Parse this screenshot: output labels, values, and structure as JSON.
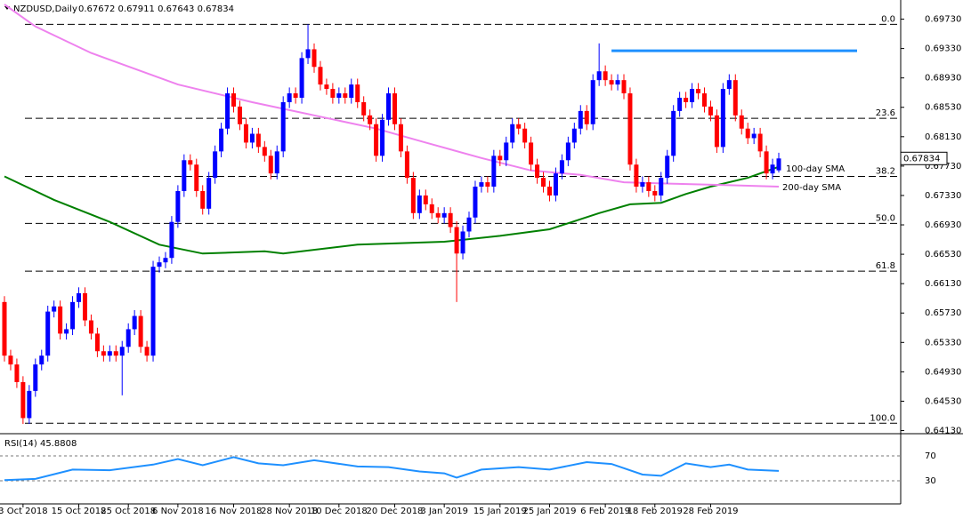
{
  "chart_data": {
    "type": "candlestick",
    "title": "NZDUSD,Daily",
    "ohlc_text": "0.67672 0.67911 0.67643 0.67834",
    "last_price": 0.67834,
    "bull_color": "#0000ff",
    "bear_color": "#ff0000",
    "ylim": [
      0.641,
      0.6993
    ],
    "yticks": [
      {
        "value": 0.6973,
        "label": "0.69730"
      },
      {
        "value": 0.6933,
        "label": "0.69330"
      },
      {
        "value": 0.6893,
        "label": "0.68930"
      },
      {
        "value": 0.6853,
        "label": "0.68530"
      },
      {
        "value": 0.6813,
        "label": "0.68130"
      },
      {
        "value": 0.6773,
        "label": "0.67730"
      },
      {
        "value": 0.6733,
        "label": "0.67330"
      },
      {
        "value": 0.6693,
        "label": "0.66930"
      },
      {
        "value": 0.6653,
        "label": "0.66530"
      },
      {
        "value": 0.6613,
        "label": "0.66130"
      },
      {
        "value": 0.6573,
        "label": "0.65730"
      },
      {
        "value": 0.6533,
        "label": "0.65330"
      },
      {
        "value": 0.6493,
        "label": "0.64930"
      },
      {
        "value": 0.6453,
        "label": "0.64530"
      },
      {
        "value": 0.6413,
        "label": "0.64130"
      }
    ],
    "categories": [
      null,
      null,
      null,
      "3 Oct 2018",
      null,
      null,
      null,
      null,
      null,
      null,
      null,
      null,
      "15 Oct 2018",
      null,
      null,
      null,
      null,
      null,
      null,
      null,
      "25 Oct 2018",
      null,
      null,
      null,
      null,
      null,
      null,
      null,
      "6 Nov 2018",
      null,
      null,
      null,
      null,
      null,
      null,
      null,
      null,
      "16 Nov 2018",
      null,
      null,
      null,
      null,
      null,
      null,
      null,
      null,
      "28 Nov 2018",
      null,
      null,
      null,
      null,
      null,
      null,
      null,
      "10 Dec 2018",
      null,
      null,
      null,
      null,
      null,
      null,
      null,
      null,
      "20 Dec 2018",
      null,
      null,
      null,
      null,
      null,
      null,
      null,
      "3 Jan 2019",
      null,
      null,
      null,
      null,
      null,
      null,
      null,
      null,
      "15 Jan 2019",
      null,
      null,
      null,
      null,
      null,
      null,
      null,
      "25 Jan 2019",
      null,
      null,
      null,
      null,
      null,
      null,
      null,
      null,
      "6 Feb 2019",
      null,
      null,
      null,
      null,
      null,
      null,
      null,
      "18 Feb 2019",
      null,
      null,
      null,
      null,
      null,
      null,
      null,
      null,
      "28 Feb 2019",
      null,
      null,
      null,
      null,
      null,
      null,
      null,
      null,
      null,
      null,
      null
    ],
    "candles": [
      [
        0.6588,
        0.6596,
        0.6507,
        0.6515
      ],
      [
        0.6515,
        0.6523,
        0.6495,
        0.6503
      ],
      [
        0.6503,
        0.6511,
        0.6471,
        0.6479
      ],
      [
        0.6479,
        0.6487,
        0.6422,
        0.643
      ],
      [
        0.643,
        0.6475,
        0.6422,
        0.6467
      ],
      [
        0.6467,
        0.6511,
        0.6459,
        0.6503
      ],
      [
        0.6503,
        0.6523,
        0.6495,
        0.6515
      ],
      [
        0.6515,
        0.6583,
        0.6507,
        0.6575
      ],
      [
        0.6575,
        0.659,
        0.6567,
        0.6582
      ],
      [
        0.6582,
        0.659,
        0.6537,
        0.6545
      ],
      [
        0.6545,
        0.6559,
        0.6537,
        0.6551
      ],
      [
        0.6551,
        0.6596,
        0.6543,
        0.6588
      ],
      [
        0.6588,
        0.6608,
        0.658,
        0.66
      ],
      [
        0.66,
        0.6608,
        0.6555,
        0.6563
      ],
      [
        0.6563,
        0.6571,
        0.6537,
        0.6545
      ],
      [
        0.6545,
        0.6553,
        0.6513,
        0.6521
      ],
      [
        0.6521,
        0.6529,
        0.6507,
        0.6515
      ],
      [
        0.6515,
        0.6529,
        0.6507,
        0.6521
      ],
      [
        0.6521,
        0.6529,
        0.6507,
        0.6515
      ],
      [
        0.6515,
        0.6535,
        0.6461,
        0.6527
      ],
      [
        0.6527,
        0.6559,
        0.6519,
        0.6551
      ],
      [
        0.6551,
        0.6577,
        0.6543,
        0.6569
      ],
      [
        0.6569,
        0.6577,
        0.6519,
        0.6527
      ],
      [
        0.6527,
        0.6535,
        0.6507,
        0.6515
      ],
      [
        0.6515,
        0.6644,
        0.6507,
        0.6636
      ],
      [
        0.6636,
        0.665,
        0.6628,
        0.6642
      ],
      [
        0.6642,
        0.6656,
        0.6634,
        0.6648
      ],
      [
        0.6648,
        0.6705,
        0.664,
        0.6697
      ],
      [
        0.6697,
        0.6747,
        0.6689,
        0.6739
      ],
      [
        0.6739,
        0.6789,
        0.6731,
        0.6781
      ],
      [
        0.6781,
        0.6789,
        0.6767,
        0.6775
      ],
      [
        0.6775,
        0.6783,
        0.6731,
        0.6739
      ],
      [
        0.6739,
        0.6747,
        0.6707,
        0.6715
      ],
      [
        0.6715,
        0.6765,
        0.6707,
        0.6757
      ],
      [
        0.6757,
        0.6801,
        0.6749,
        0.6793
      ],
      [
        0.6793,
        0.6832,
        0.6785,
        0.6824
      ],
      [
        0.6824,
        0.688,
        0.6816,
        0.6872
      ],
      [
        0.6872,
        0.688,
        0.6846,
        0.6854
      ],
      [
        0.6854,
        0.6862,
        0.6822,
        0.683
      ],
      [
        0.683,
        0.6838,
        0.6797,
        0.6805
      ],
      [
        0.6805,
        0.6825,
        0.6797,
        0.6817
      ],
      [
        0.6817,
        0.6825,
        0.6791,
        0.6799
      ],
      [
        0.6799,
        0.6807,
        0.6779,
        0.6787
      ],
      [
        0.6787,
        0.6795,
        0.6755,
        0.6763
      ],
      [
        0.6763,
        0.6801,
        0.6755,
        0.6793
      ],
      [
        0.6793,
        0.6868,
        0.6785,
        0.686
      ],
      [
        0.686,
        0.688,
        0.6852,
        0.6872
      ],
      [
        0.6872,
        0.688,
        0.6858,
        0.6866
      ],
      [
        0.6866,
        0.6928,
        0.6858,
        0.692
      ],
      [
        0.692,
        0.6966,
        0.6912,
        0.6932
      ],
      [
        0.6932,
        0.694,
        0.69,
        0.6908
      ],
      [
        0.6908,
        0.6916,
        0.6876,
        0.6884
      ],
      [
        0.6884,
        0.6892,
        0.687,
        0.6878
      ],
      [
        0.6878,
        0.6886,
        0.6858,
        0.6866
      ],
      [
        0.6866,
        0.688,
        0.6858,
        0.6872
      ],
      [
        0.6872,
        0.688,
        0.6858,
        0.6866
      ],
      [
        0.6866,
        0.6892,
        0.6858,
        0.6884
      ],
      [
        0.6884,
        0.6892,
        0.6852,
        0.686
      ],
      [
        0.686,
        0.6868,
        0.6834,
        0.6842
      ],
      [
        0.6842,
        0.685,
        0.6822,
        0.683
      ],
      [
        0.683,
        0.6838,
        0.6779,
        0.6787
      ],
      [
        0.6787,
        0.6844,
        0.6779,
        0.6836
      ],
      [
        0.6836,
        0.688,
        0.6828,
        0.6872
      ],
      [
        0.6872,
        0.688,
        0.6822,
        0.683
      ],
      [
        0.683,
        0.6838,
        0.6785,
        0.6793
      ],
      [
        0.6793,
        0.6801,
        0.6749,
        0.6757
      ],
      [
        0.6757,
        0.6765,
        0.6701,
        0.6709
      ],
      [
        0.6709,
        0.6741,
        0.6701,
        0.6733
      ],
      [
        0.6733,
        0.6741,
        0.6713,
        0.6721
      ],
      [
        0.6721,
        0.6729,
        0.6701,
        0.6709
      ],
      [
        0.6709,
        0.6717,
        0.6695,
        0.6703
      ],
      [
        0.6703,
        0.6717,
        0.6695,
        0.6709
      ],
      [
        0.6709,
        0.6717,
        0.6682,
        0.669
      ],
      [
        0.669,
        0.6698,
        0.6588,
        0.6654
      ],
      [
        0.6654,
        0.6692,
        0.6646,
        0.6684
      ],
      [
        0.6684,
        0.6711,
        0.6676,
        0.6703
      ],
      [
        0.6703,
        0.6753,
        0.6695,
        0.6745
      ],
      [
        0.6745,
        0.6759,
        0.6737,
        0.6751
      ],
      [
        0.6751,
        0.6759,
        0.6737,
        0.6745
      ],
      [
        0.6745,
        0.6795,
        0.6737,
        0.6787
      ],
      [
        0.6787,
        0.6795,
        0.6773,
        0.6781
      ],
      [
        0.6781,
        0.6813,
        0.6773,
        0.6805
      ],
      [
        0.6805,
        0.6838,
        0.6797,
        0.683
      ],
      [
        0.683,
        0.6838,
        0.6816,
        0.6824
      ],
      [
        0.6824,
        0.6832,
        0.6797,
        0.6805
      ],
      [
        0.6805,
        0.6813,
        0.6767,
        0.6775
      ],
      [
        0.6775,
        0.6783,
        0.6749,
        0.6757
      ],
      [
        0.6757,
        0.6765,
        0.6737,
        0.6745
      ],
      [
        0.6745,
        0.6753,
        0.6725,
        0.6733
      ],
      [
        0.6733,
        0.6771,
        0.6725,
        0.6763
      ],
      [
        0.6763,
        0.6789,
        0.6755,
        0.6781
      ],
      [
        0.6781,
        0.6813,
        0.6773,
        0.6805
      ],
      [
        0.6805,
        0.6832,
        0.6797,
        0.6824
      ],
      [
        0.6824,
        0.6856,
        0.6816,
        0.6848
      ],
      [
        0.6848,
        0.6856,
        0.6822,
        0.683
      ],
      [
        0.683,
        0.6898,
        0.6822,
        0.689
      ],
      [
        0.689,
        0.694,
        0.6882,
        0.6902
      ],
      [
        0.6902,
        0.691,
        0.6882,
        0.689
      ],
      [
        0.689,
        0.6898,
        0.6876,
        0.6884
      ],
      [
        0.6884,
        0.6898,
        0.6876,
        0.689
      ],
      [
        0.689,
        0.6898,
        0.6864,
        0.6872
      ],
      [
        0.6872,
        0.688,
        0.6767,
        0.6775
      ],
      [
        0.6775,
        0.6783,
        0.6737,
        0.6745
      ],
      [
        0.6745,
        0.6759,
        0.6737,
        0.6751
      ],
      [
        0.6751,
        0.6759,
        0.6731,
        0.6739
      ],
      [
        0.6739,
        0.6747,
        0.6725,
        0.6733
      ],
      [
        0.6733,
        0.6765,
        0.6725,
        0.6757
      ],
      [
        0.6757,
        0.6795,
        0.6749,
        0.6787
      ],
      [
        0.6787,
        0.6856,
        0.6779,
        0.6848
      ],
      [
        0.6848,
        0.6874,
        0.684,
        0.6866
      ],
      [
        0.6866,
        0.6874,
        0.6852,
        0.686
      ],
      [
        0.686,
        0.6886,
        0.6852,
        0.6878
      ],
      [
        0.6878,
        0.6886,
        0.6864,
        0.6872
      ],
      [
        0.6872,
        0.688,
        0.6846,
        0.6854
      ],
      [
        0.6854,
        0.6862,
        0.6834,
        0.6842
      ],
      [
        0.6842,
        0.685,
        0.6791,
        0.6799
      ],
      [
        0.6799,
        0.6886,
        0.6791,
        0.6878
      ],
      [
        0.6878,
        0.6898,
        0.687,
        0.689
      ],
      [
        0.689,
        0.6898,
        0.6834,
        0.6842
      ],
      [
        0.6842,
        0.685,
        0.6816,
        0.6824
      ],
      [
        0.6824,
        0.6832,
        0.6803,
        0.6811
      ],
      [
        0.6811,
        0.6825,
        0.6803,
        0.6817
      ],
      [
        0.6817,
        0.6825,
        0.6785,
        0.6793
      ],
      [
        0.6793,
        0.6801,
        0.6755,
        0.6763
      ],
      [
        0.6763,
        0.6783,
        0.6755,
        0.6775
      ],
      [
        0.67672,
        0.67911,
        0.67643,
        0.67834
      ]
    ],
    "series": [
      {
        "name": "100-day SMA",
        "color": "#008000",
        "x": [
          0,
          8,
          17,
          25,
          32,
          42,
          45,
          57,
          71,
          80,
          88,
          96,
          101,
          106,
          110,
          114,
          120,
          125
        ],
        "values": [
          0.6759,
          0.6727,
          0.6697,
          0.6666,
          0.6654,
          0.6657,
          0.6654,
          0.6666,
          0.667,
          0.6678,
          0.6687,
          0.6709,
          0.6721,
          0.6723,
          0.6735,
          0.6745,
          0.6757,
          0.6772
        ]
      },
      {
        "name": "200-day SMA",
        "color": "#ee82ee",
        "x": [
          0,
          5,
          14,
          28,
          40,
          50,
          60,
          68,
          77,
          85,
          93,
          100,
          108,
          117,
          125
        ],
        "values": [
          0.6993,
          0.6963,
          0.6927,
          0.6884,
          0.686,
          0.6842,
          0.6824,
          0.6805,
          0.6784,
          0.6767,
          0.6761,
          0.6751,
          0.6749,
          0.6747,
          0.6745
        ]
      }
    ],
    "resistance": {
      "color": "#1e90ff",
      "value": 0.693,
      "from": 98
    },
    "fib_levels": [
      {
        "level": "0.0",
        "price": 0.6966
      },
      {
        "level": "23.6",
        "price": 0.6838
      },
      {
        "level": "38.2",
        "price": 0.6759
      },
      {
        "level": "50.0",
        "price": 0.6695
      },
      {
        "level": "61.8",
        "price": 0.663
      },
      {
        "level": "100.0",
        "price": 0.6423
      }
    ],
    "rsi": {
      "title": "RSI(14) 45.8808",
      "color": "#1e90ff",
      "ylim": [
        0,
        100
      ],
      "yticks": [
        70,
        30
      ],
      "x": [
        0,
        5,
        11,
        17,
        24,
        28,
        32,
        37,
        41,
        45,
        50,
        57,
        62,
        67,
        71,
        73,
        77,
        83,
        88,
        94,
        98,
        103,
        106,
        110,
        114,
        117,
        120,
        125
      ],
      "values": [
        31,
        33,
        48,
        47,
        56,
        65,
        55,
        68,
        58,
        55,
        63,
        53,
        52,
        45,
        42,
        35,
        48,
        52,
        48,
        60,
        57,
        40,
        38,
        58,
        52,
        56,
        48,
        45.88
      ]
    }
  }
}
